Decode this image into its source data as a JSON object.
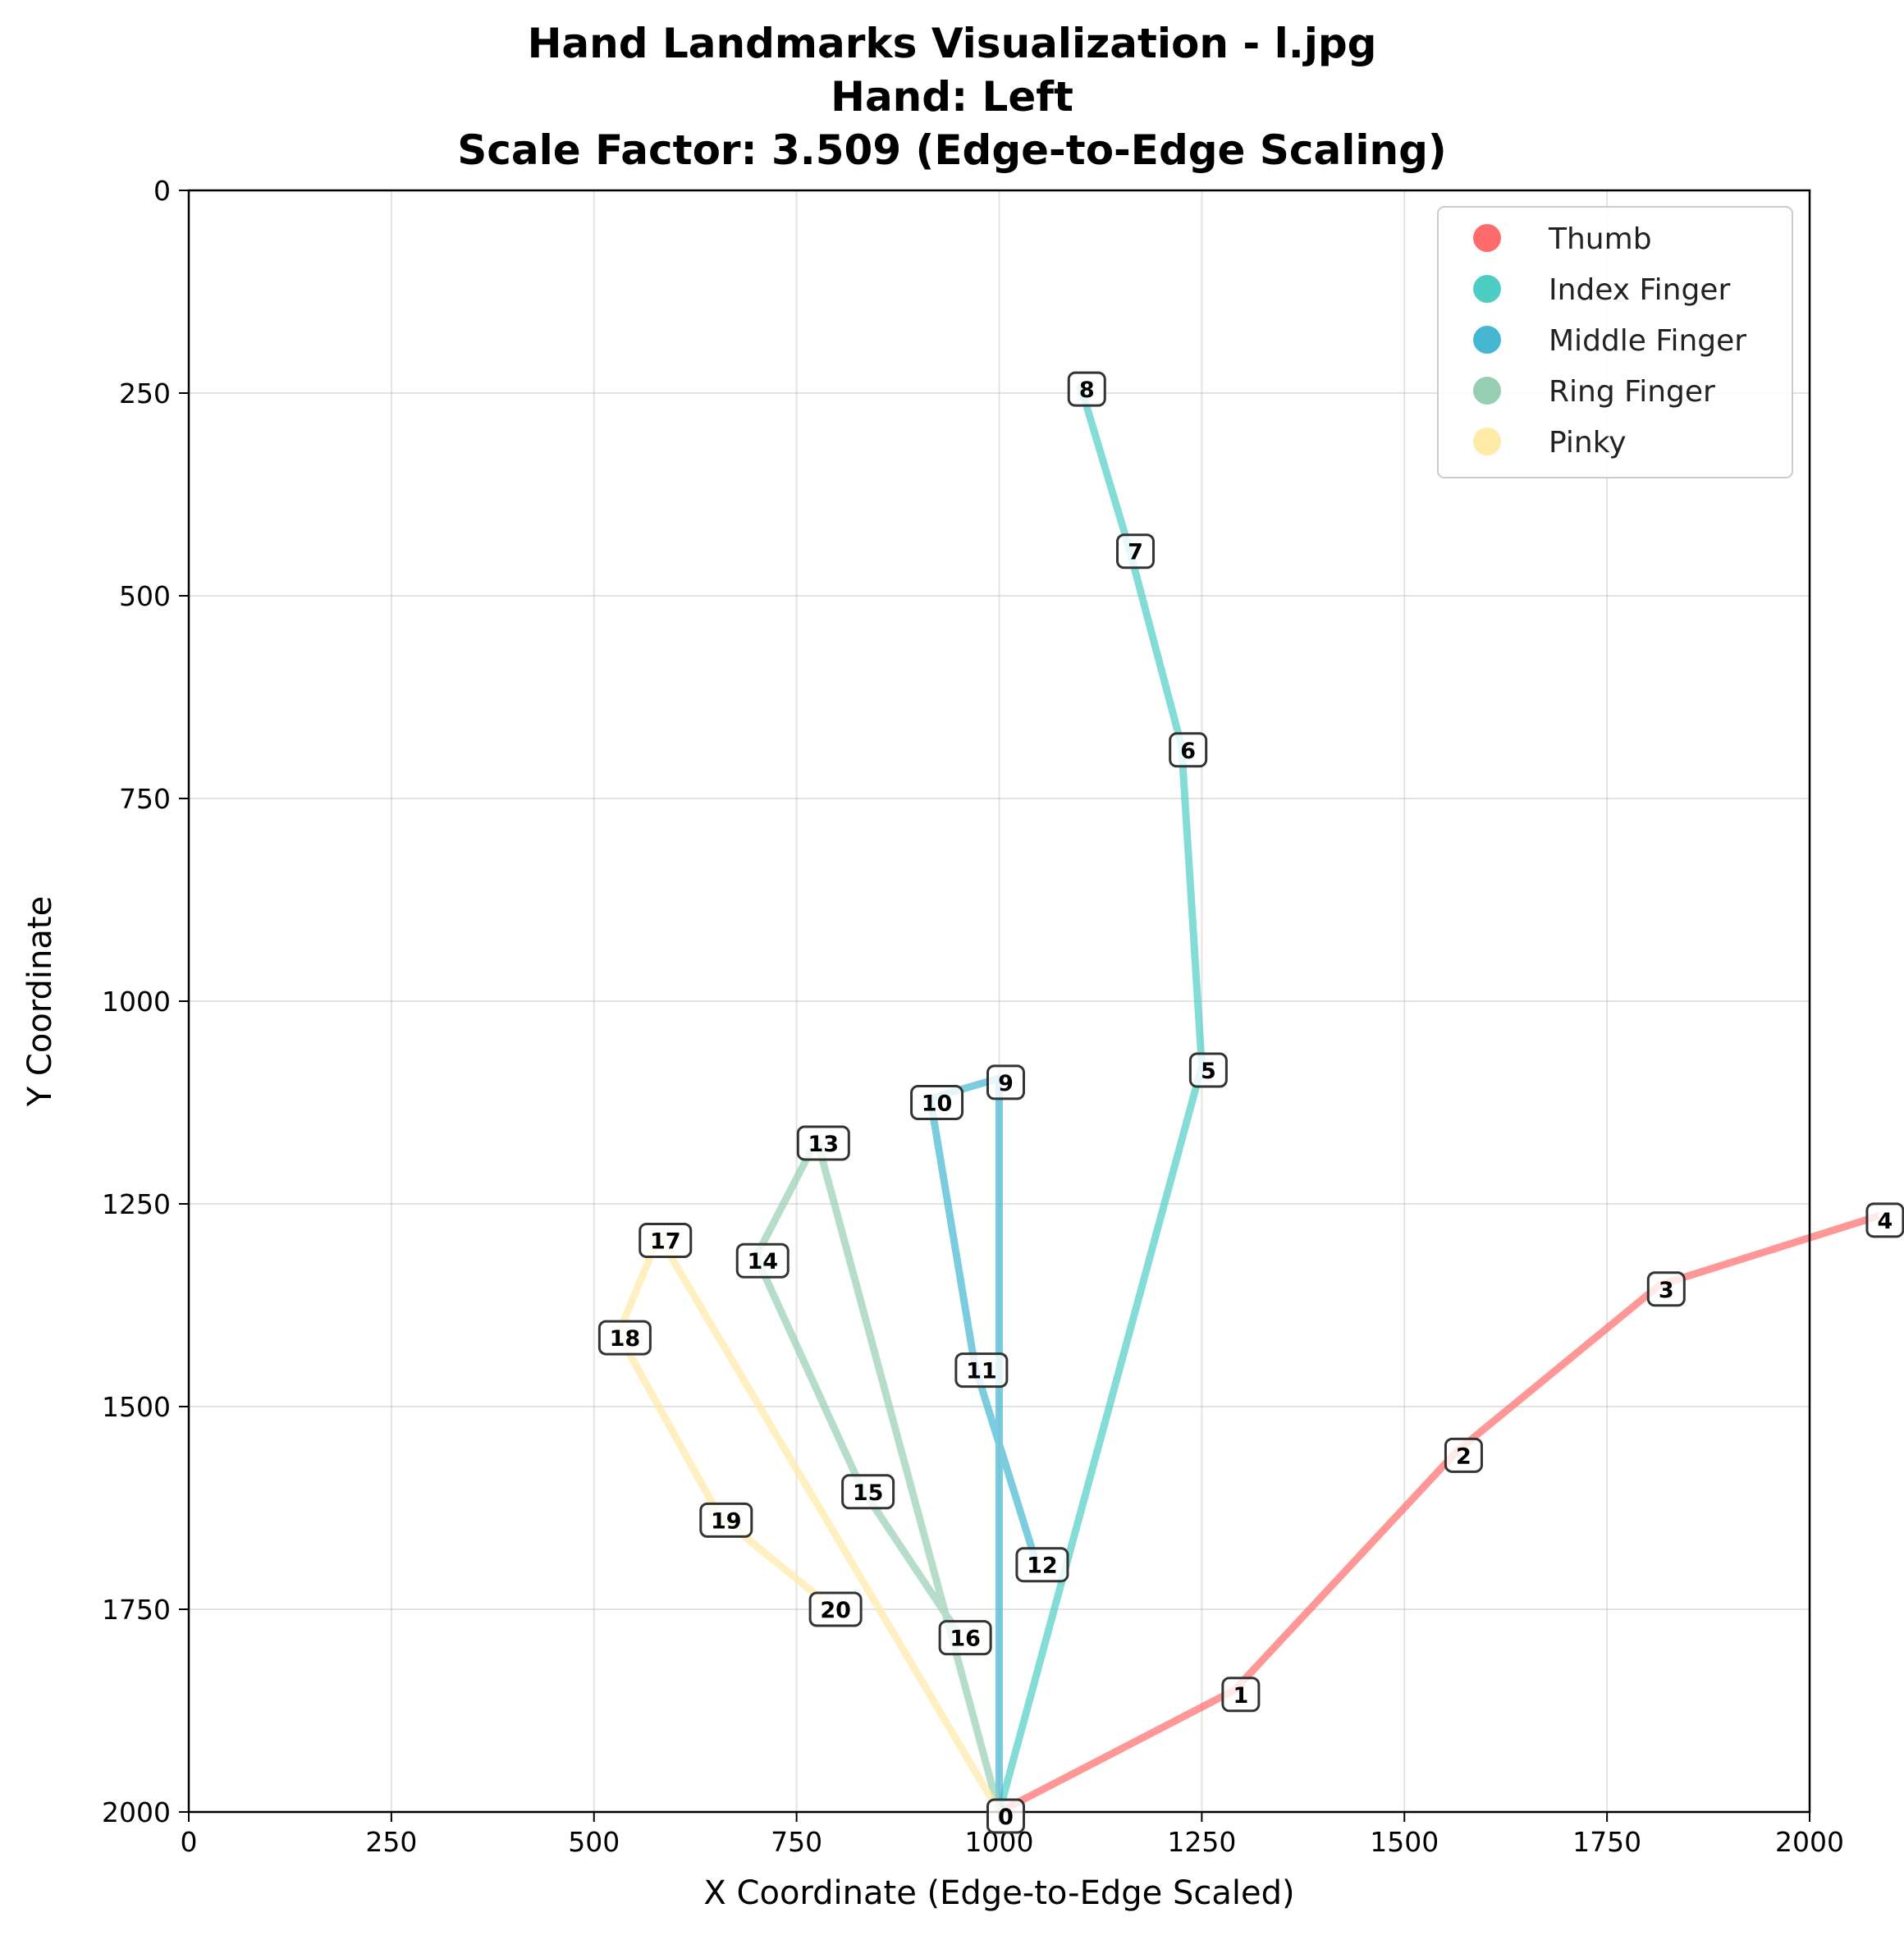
{
  "chart_data": {
    "type": "line",
    "title_lines": [
      "Hand Landmarks Visualization - l.jpg",
      "Hand: Left",
      "Scale Factor: 3.509 (Edge-to-Edge Scaling)"
    ],
    "xlabel": "X Coordinate (Edge-to-Edge Scaled)",
    "ylabel": "Y Coordinate",
    "xlim": [
      0,
      2000
    ],
    "ylim": [
      2000,
      0
    ],
    "y_inverted": true,
    "xticks": [
      0,
      250,
      500,
      750,
      1000,
      1250,
      1500,
      1750,
      2000
    ],
    "yticks": [
      0,
      250,
      500,
      750,
      1000,
      1250,
      1500,
      1750,
      2000
    ],
    "grid": true,
    "legend_position": "top-right",
    "landmarks": [
      {
        "id": "0",
        "x": 1000,
        "y": 2000
      },
      {
        "id": "1",
        "x": 1290,
        "y": 1850
      },
      {
        "id": "2",
        "x": 1565,
        "y": 1555
      },
      {
        "id": "3",
        "x": 1815,
        "y": 1350
      },
      {
        "id": "4",
        "x": 2085,
        "y": 1265
      },
      {
        "id": "5",
        "x": 1250,
        "y": 1080
      },
      {
        "id": "6",
        "x": 1225,
        "y": 685
      },
      {
        "id": "7",
        "x": 1160,
        "y": 440
      },
      {
        "id": "8",
        "x": 1100,
        "y": 240
      },
      {
        "id": "9",
        "x": 1000,
        "y": 1095
      },
      {
        "id": "10",
        "x": 915,
        "y": 1120
      },
      {
        "id": "11",
        "x": 970,
        "y": 1450
      },
      {
        "id": "12",
        "x": 1045,
        "y": 1690
      },
      {
        "id": "13",
        "x": 775,
        "y": 1170
      },
      {
        "id": "14",
        "x": 700,
        "y": 1315
      },
      {
        "id": "15",
        "x": 830,
        "y": 1600
      },
      {
        "id": "16",
        "x": 950,
        "y": 1780
      },
      {
        "id": "17",
        "x": 580,
        "y": 1290
      },
      {
        "id": "18",
        "x": 530,
        "y": 1410
      },
      {
        "id": "19",
        "x": 655,
        "y": 1635
      },
      {
        "id": "20",
        "x": 790,
        "y": 1745
      }
    ],
    "series": [
      {
        "name": "Thumb",
        "color": "#ff6b6b",
        "points": [
          "0",
          "1",
          "2",
          "3",
          "4"
        ]
      },
      {
        "name": "Index Finger",
        "color": "#4ecdc4",
        "points": [
          "0",
          "5",
          "6",
          "7",
          "8"
        ]
      },
      {
        "name": "Middle Finger",
        "color": "#45b7d1",
        "points": [
          "0",
          "9",
          "10",
          "11",
          "12"
        ]
      },
      {
        "name": "Ring Finger",
        "color": "#96ceb4",
        "points": [
          "0",
          "13",
          "14",
          "15",
          "16"
        ]
      },
      {
        "name": "Pinky",
        "color": "#ffeaa7",
        "points": [
          "0",
          "17",
          "18",
          "19",
          "20"
        ]
      }
    ]
  }
}
